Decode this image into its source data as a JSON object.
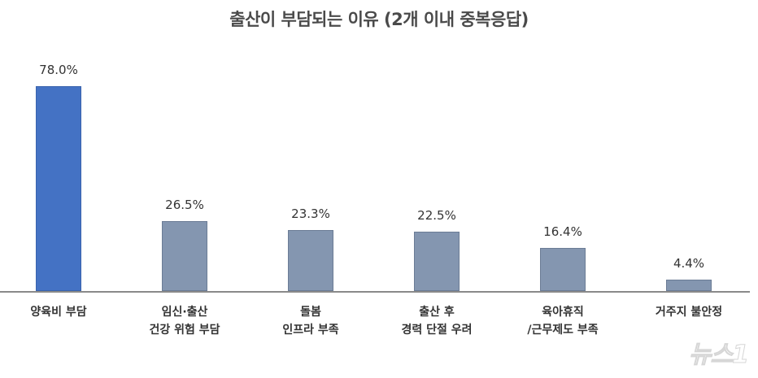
{
  "chart_data": {
    "type": "bar",
    "title": "출산이 부담되는 이유 (2개 이내 중복응답)",
    "categories": [
      "양육비 부담",
      "임신·출산 건강 위험 부담",
      "돌봄 인프라 부족",
      "출산 후 경력 단절 우려",
      "육아휴직/근무제도 부족",
      "거주지 불안정"
    ],
    "category_lines": [
      [
        "양육비 부담"
      ],
      [
        "임신·출산",
        "건강 위험 부담"
      ],
      [
        "돌봄",
        "인프라 부족"
      ],
      [
        "출산 후",
        "경력 단절 우려"
      ],
      [
        "육아휴직",
        "/근무제도 부족"
      ],
      [
        "거주지 불안정"
      ]
    ],
    "values": [
      78.0,
      26.5,
      23.3,
      22.5,
      16.4,
      4.4
    ],
    "value_labels": [
      "78.0%",
      "26.5%",
      "23.3%",
      "22.5%",
      "16.4%",
      "4.4%"
    ],
    "xlabel": "",
    "ylabel": "",
    "ylim": [
      0,
      80
    ],
    "grid": false,
    "legend": null,
    "colors": [
      "#4472c4",
      "#8496b0",
      "#8496b0",
      "#8496b0",
      "#8496b0",
      "#8496b0"
    ],
    "unit": "%"
  },
  "watermark": {
    "text": "뉴스1"
  }
}
